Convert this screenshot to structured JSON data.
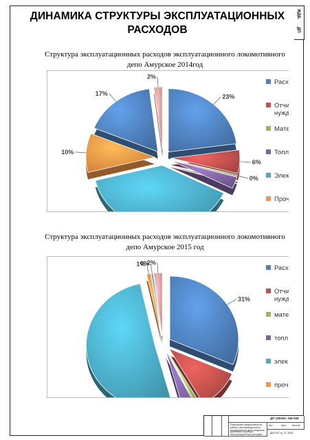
{
  "page": {
    "title": "ДИНАМИКА СТРУКТУРЫ ЭКСПЛУАТАЦИОННЫХ РАСХОДОВ"
  },
  "colors": {
    "pay": "#4f81bd",
    "contrib": "#c0504d",
    "materials": "#9bbb59",
    "fuel": "#8064a2",
    "electric": "#4bacc6",
    "other": "#f79646",
    "extra": "#e5a0a0"
  },
  "chart_data": [
    {
      "type": "pie",
      "title": "Структура эксплуатационных расходов эксплуатационного локомотивного депо Амурское 2014год",
      "slices": [
        {
          "legend": "Расх",
          "value": 23,
          "label": "23%",
          "color": "#4f81bd"
        },
        {
          "legend": "Отчи нужд",
          "value": 6,
          "label": "6%",
          "color": "#c0504d"
        },
        {
          "legend": "Мате",
          "value": 0.4,
          "label": "0%",
          "color": "#9bbb59"
        },
        {
          "legend": "Топл",
          "value": 3,
          "label": "",
          "color": "#8064a2"
        },
        {
          "legend": "Элек",
          "value": 39,
          "label": "",
          "color": "#4bacc6"
        },
        {
          "legend": "Проч",
          "value": 10,
          "label": "10%",
          "color": "#f79646"
        },
        {
          "legend": "",
          "value": 17,
          "label": "17%",
          "color": "#4f81bd"
        },
        {
          "legend": "",
          "value": 2,
          "label": "2%",
          "color": "#e5a0a0"
        }
      ],
      "legend": [
        "Расх",
        "Отчи нужд",
        "Мате",
        "Топл",
        "Элек",
        "Проч"
      ]
    },
    {
      "type": "pie",
      "title": "Структура эксплуатационных расходов эксплуатационного локомотивного депо Амурское 2015 год",
      "slices": [
        {
          "legend": "Расх",
          "value": 31,
          "label": "31%",
          "color": "#4f81bd"
        },
        {
          "legend": "Отчи нужд",
          "value": 10,
          "label": "",
          "color": "#c0504d"
        },
        {
          "legend": "мате",
          "value": 1,
          "label": "",
          "color": "#9bbb59"
        },
        {
          "legend": "топл",
          "value": 3,
          "label": "",
          "color": "#8064a2"
        },
        {
          "legend": "элек",
          "value": 50,
          "label": "",
          "color": "#4bacc6"
        },
        {
          "legend": "проч",
          "value": 1,
          "label": "1%",
          "color": "#f79646"
        },
        {
          "legend": "",
          "value": 0.4,
          "label": "0%",
          "color": "#4f81bd"
        },
        {
          "legend": "",
          "value": 2,
          "label": "2%",
          "color": "#e5a0a0"
        }
      ],
      "legend": [
        "Расх",
        "Отчи нужд",
        "мате",
        "топл",
        "элек",
        "проч"
      ]
    }
  ],
  "side_tab": {
    "top_text": "ЖДБ",
    "bottom_text": "ДП"
  },
  "stamp": {
    "doc_code": "ДП 190300. 346 009",
    "caption_top": "Повышение эффективности работы эксплуатационного локомотивного депо Амурское",
    "caption_bottom": "Динамика структуры эксплуатационных расходов",
    "stage_label": "Лит",
    "sheet_label": "Лист",
    "sheets_label": "Листов",
    "org": "ДВГУПС гр. ЛТ-2015"
  }
}
